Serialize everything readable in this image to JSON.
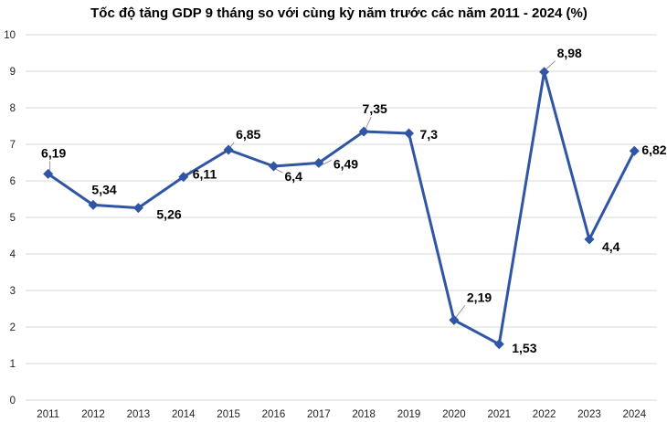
{
  "chart_data": {
    "type": "line",
    "title": "Tốc độ tăng GDP 9 tháng so với cùng kỳ năm trước các năm 2011 - 2024 (%)",
    "xlabel": "",
    "ylabel": "",
    "ylim": [
      0,
      10
    ],
    "yticks": [
      "0",
      "1",
      "2",
      "3",
      "4",
      "5",
      "6",
      "7",
      "8",
      "9",
      "10"
    ],
    "grid": true,
    "legend": "none",
    "categories": [
      "2011",
      "2012",
      "2013",
      "2014",
      "2015",
      "2016",
      "2017",
      "2018",
      "2019",
      "2020",
      "2021",
      "2022",
      "2023",
      "2024"
    ],
    "series": [
      {
        "name": "Tốc độ tăng GDP 9 tháng",
        "color": "#2f55a4",
        "values": [
          6.19,
          5.34,
          5.26,
          6.11,
          6.85,
          6.4,
          6.49,
          7.35,
          7.3,
          2.19,
          1.53,
          8.98,
          4.4,
          6.82
        ],
        "labels": [
          "6,19",
          "5,34",
          "5,26",
          "6,11",
          "6,85",
          "6,4",
          "6,49",
          "7,35",
          "7,3",
          "2,19",
          "1,53",
          "8,98",
          "4,4",
          "6,82"
        ]
      }
    ]
  }
}
